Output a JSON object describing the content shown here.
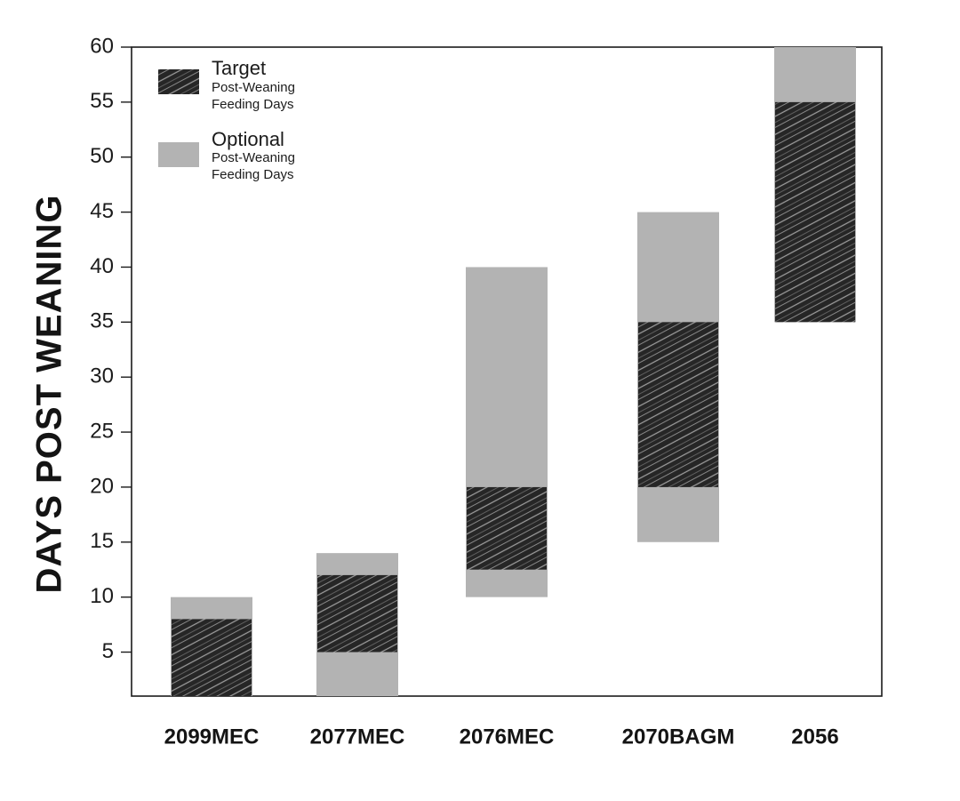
{
  "chart_data": {
    "type": "bar",
    "subtype": "floating-range",
    "title": "",
    "xlabel": "",
    "ylabel": "DAYS POST WEANING",
    "ylim": [
      1,
      60
    ],
    "yticks": [
      5,
      10,
      15,
      20,
      25,
      30,
      35,
      40,
      45,
      50,
      55,
      60
    ],
    "grid": false,
    "legend_position": "top-left",
    "categories": [
      "2099MEC",
      "2077MEC",
      "2076MEC",
      "2070BAGM",
      "2056"
    ],
    "series": [
      {
        "name": "Optional",
        "subtitle_line1": "Post-Weaning",
        "subtitle_line2": "Feeding Days",
        "style": "gray-fill",
        "color": "#b3b3b3",
        "ranges": [
          [
            1,
            10
          ],
          [
            1,
            14
          ],
          [
            10,
            40
          ],
          [
            15,
            45
          ],
          [
            35,
            60
          ]
        ]
      },
      {
        "name": "Target",
        "subtitle_line1": "Post-Weaning",
        "subtitle_line2": "Feeding Days",
        "style": "black-scribble",
        "color": "#1a1a1a",
        "ranges": [
          [
            1,
            8
          ],
          [
            5,
            12
          ],
          [
            12.5,
            20
          ],
          [
            20,
            35
          ],
          [
            35,
            55
          ]
        ]
      }
    ]
  }
}
